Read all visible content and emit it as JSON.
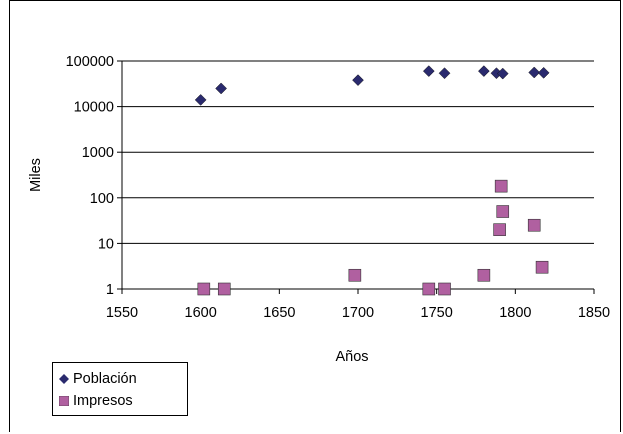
{
  "chart_data": {
    "type": "scatter",
    "title": "",
    "xlabel": "Años",
    "ylabel": "Miles",
    "xlim": [
      1550,
      1850
    ],
    "ylim": [
      1,
      100000
    ],
    "yscale": "log",
    "x_ticks": [
      "1550",
      "1600",
      "1650",
      "1700",
      "1750",
      "1800",
      "1850"
    ],
    "y_ticks": [
      "1",
      "10",
      "100",
      "1000",
      "10000",
      "100000"
    ],
    "grid": "horizontal",
    "legend_position": "bottom-left",
    "series": [
      {
        "name": "Población",
        "marker": "diamond",
        "color": "#2a2a6e",
        "points": [
          {
            "x": 1600,
            "y": 14000
          },
          {
            "x": 1613,
            "y": 25000
          },
          {
            "x": 1700,
            "y": 38000
          },
          {
            "x": 1745,
            "y": 60000
          },
          {
            "x": 1755,
            "y": 54000
          },
          {
            "x": 1780,
            "y": 60000
          },
          {
            "x": 1788,
            "y": 54000
          },
          {
            "x": 1792,
            "y": 53000
          },
          {
            "x": 1812,
            "y": 56000
          },
          {
            "x": 1818,
            "y": 55000
          }
        ]
      },
      {
        "name": "Impresos",
        "marker": "square",
        "color": "#b060a0",
        "points": [
          {
            "x": 1602,
            "y": 1
          },
          {
            "x": 1615,
            "y": 1
          },
          {
            "x": 1698,
            "y": 2
          },
          {
            "x": 1745,
            "y": 1
          },
          {
            "x": 1755,
            "y": 1
          },
          {
            "x": 1780,
            "y": 2
          },
          {
            "x": 1790,
            "y": 20
          },
          {
            "x": 1791,
            "y": 180
          },
          {
            "x": 1792,
            "y": 50
          },
          {
            "x": 1812,
            "y": 25
          },
          {
            "x": 1817,
            "y": 3
          }
        ]
      }
    ]
  }
}
